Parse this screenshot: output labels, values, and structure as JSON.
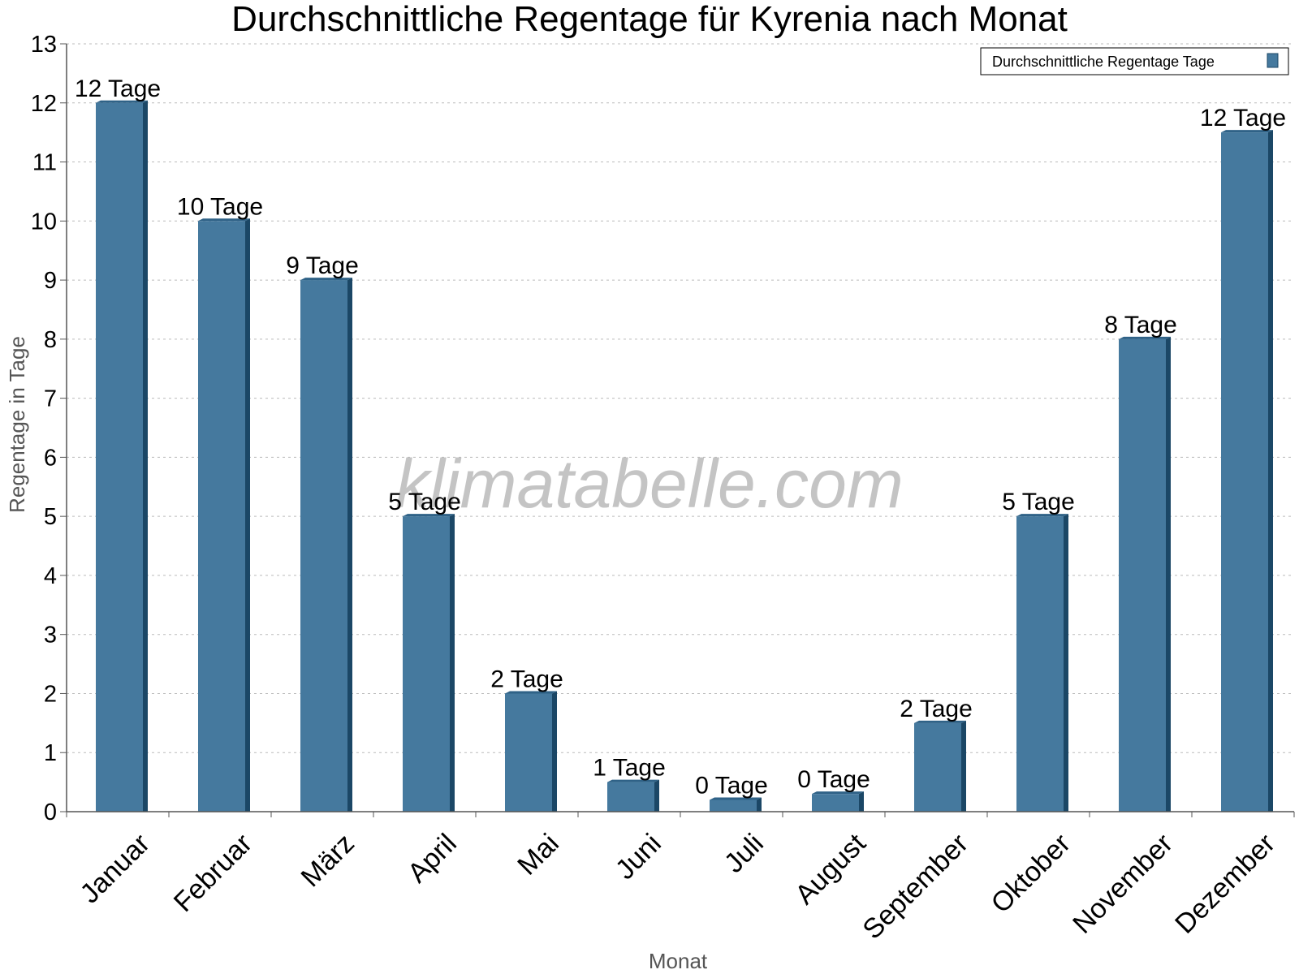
{
  "colors": {
    "bar_front": "#45799e",
    "bar_side": "#1b4766",
    "bar_top": "#2f6287",
    "grid": "#bbbbbb",
    "axis": "#555555"
  },
  "watermark": "klimatabelle.com",
  "chart_data": {
    "type": "bar",
    "title": "Durchschnittliche Regentage für Kyrenia nach Monat",
    "xlabel": "Monat",
    "ylabel": "Regentage in Tage",
    "ylim": [
      0,
      13
    ],
    "yticks": [
      0,
      1,
      2,
      3,
      4,
      5,
      6,
      7,
      8,
      9,
      10,
      11,
      12,
      13
    ],
    "grid": true,
    "legend_position": "top-right",
    "categories": [
      "Januar",
      "Februar",
      "März",
      "April",
      "Mai",
      "Juni",
      "Juli",
      "August",
      "September",
      "Oktober",
      "November",
      "Dezember"
    ],
    "series": [
      {
        "name": "Durchschnittliche Regentage Tage",
        "values": [
          12,
          10,
          9,
          5,
          2,
          0.5,
          0.2,
          0.3,
          1.5,
          5,
          8,
          11.5
        ],
        "labels": [
          "12 Tage",
          "10 Tage",
          "9 Tage",
          "5 Tage",
          "2 Tage",
          "1 Tage",
          "0 Tage",
          "0 Tage",
          "2 Tage",
          "5 Tage",
          "8 Tage",
          "12 Tage"
        ]
      }
    ]
  }
}
